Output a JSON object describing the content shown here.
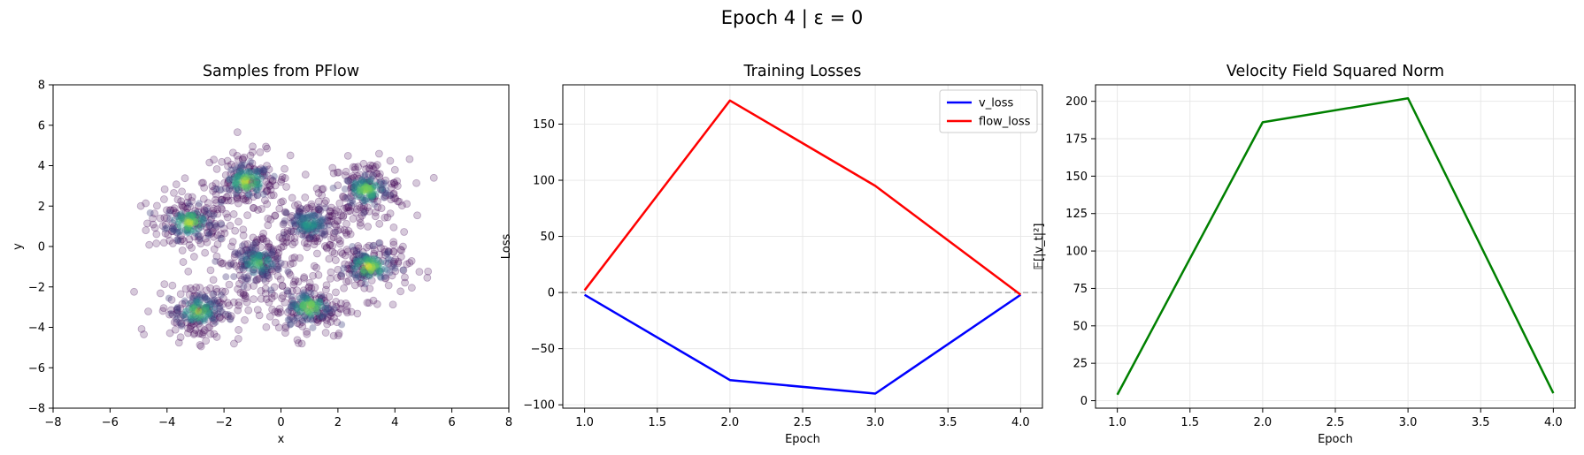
{
  "suptitle": "Epoch 4 | ε = 0",
  "colors": {
    "v_loss": "#0000ff",
    "flow_loss": "#ff0000",
    "velocity": "#008000",
    "zero_line": "#999999",
    "grid": "#e6e6e6",
    "scatter_low": "#440154",
    "scatter_high": "#fde725"
  },
  "chart_data": [
    {
      "type": "scatter",
      "title": "Samples from PFlow",
      "xlabel": "x",
      "ylabel": "y",
      "xlim": [
        -8,
        8
      ],
      "ylim": [
        -8,
        8
      ],
      "xticks": [
        -8,
        -6,
        -4,
        -2,
        0,
        2,
        4,
        6,
        8
      ],
      "yticks": [
        -8,
        -6,
        -4,
        -2,
        0,
        2,
        4,
        6,
        8
      ],
      "grid": false,
      "colormap": "viridis (point density)",
      "clusters": [
        {
          "x": -3.2,
          "y": 1.2,
          "density": 0.95
        },
        {
          "x": -1.2,
          "y": 3.2,
          "density": 1.0
        },
        {
          "x": 3.0,
          "y": 2.8,
          "density": 0.9
        },
        {
          "x": 1.0,
          "y": 1.1,
          "density": 0.6
        },
        {
          "x": -0.8,
          "y": -0.8,
          "density": 0.75
        },
        {
          "x": 3.1,
          "y": -1.0,
          "density": 1.0
        },
        {
          "x": -2.9,
          "y": -3.2,
          "density": 0.9
        },
        {
          "x": 1.0,
          "y": -3.0,
          "density": 0.95
        }
      ]
    },
    {
      "type": "line",
      "title": "Training Losses",
      "xlabel": "Epoch",
      "ylabel": "Loss",
      "xlim": [
        0.85,
        4.15
      ],
      "ylim": [
        -103,
        185
      ],
      "xticks": [
        1.0,
        1.5,
        2.0,
        2.5,
        3.0,
        3.5,
        4.0
      ],
      "yticks": [
        -100,
        -50,
        0,
        50,
        100,
        150
      ],
      "grid": true,
      "legend": "top-right",
      "hline": 0,
      "x": [
        1.0,
        2.0,
        3.0,
        4.0
      ],
      "series": [
        {
          "name": "v_loss",
          "values": [
            -2,
            -78,
            -90,
            -2
          ]
        },
        {
          "name": "flow_loss",
          "values": [
            2,
            171,
            95,
            -2
          ]
        }
      ]
    },
    {
      "type": "line",
      "title": "Velocity Field Squared Norm",
      "xlabel": "Epoch",
      "ylabel": "𝔼[|v_t|²]",
      "xlim": [
        0.85,
        4.15
      ],
      "ylim": [
        -5,
        211
      ],
      "xticks": [
        1.0,
        1.5,
        2.0,
        2.5,
        3.0,
        3.5,
        4.0
      ],
      "yticks": [
        0,
        25,
        50,
        75,
        100,
        125,
        150,
        175,
        200
      ],
      "grid": true,
      "x": [
        1.0,
        2.0,
        3.0,
        4.0
      ],
      "series": [
        {
          "values": [
            4,
            186,
            202,
            5
          ]
        }
      ]
    }
  ]
}
